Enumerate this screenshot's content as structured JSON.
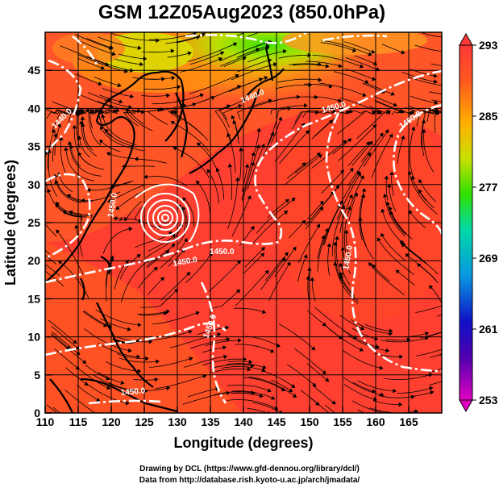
{
  "title": "GSM 12Z05Aug2023 (850.0hPa)",
  "x_axis": {
    "label": "Longitude (degrees)",
    "range": [
      110,
      170
    ],
    "ticks": [
      110,
      115,
      120,
      125,
      130,
      135,
      140,
      145,
      150,
      155,
      160,
      165
    ]
  },
  "y_axis": {
    "label": "Latitude  (degrees)",
    "range": [
      0,
      50
    ],
    "ticks": [
      0,
      5,
      10,
      15,
      20,
      25,
      30,
      35,
      40,
      45
    ]
  },
  "colorbar": {
    "ticks": [
      293,
      285,
      277,
      269,
      261,
      253
    ],
    "range": [
      253,
      293
    ],
    "colors": [
      "#d800b8",
      "#1010c0",
      "#0898e0",
      "#00d8a0",
      "#30e000",
      "#c8e000",
      "#ffb000",
      "#ff5020",
      "#ff3838"
    ]
  },
  "contour_labels": [
    "1440.0",
    "1450.0",
    "1460.0",
    "1450.0",
    "1450.0",
    "1440.0",
    "1450.0",
    "1450.0",
    "1450.0",
    "1450.0"
  ],
  "footer": {
    "line1": "Drawing by DCL (https://www.gfd-dennou.org/library/dcl/)",
    "line2": "Data from http://database.rish.kyoto-u.ac.jp/arch/jmadata/"
  }
}
